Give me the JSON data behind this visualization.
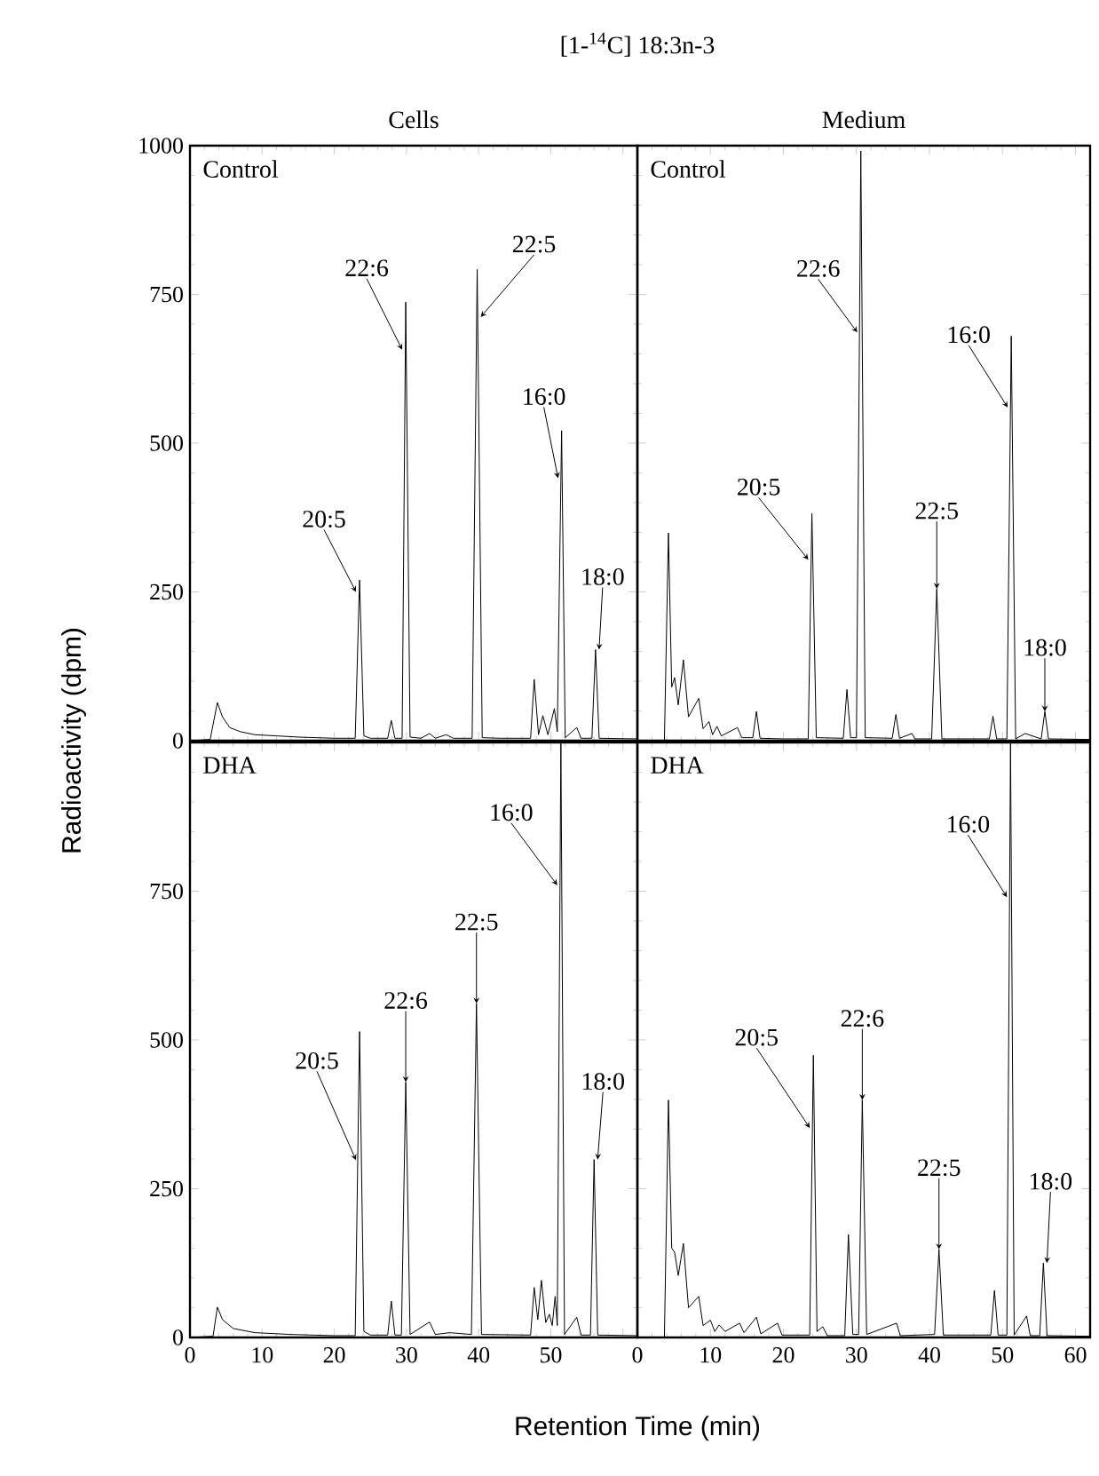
{
  "chart_data": [
    {
      "type": "line",
      "title": "[1-$^{14}$C] 18:3n-3",
      "subtitle": "Cells",
      "ylabel": "Radioactivity (dpm)",
      "annotations": [
        "Control",
        {
          "text": "20:5",
          "x": 23.5,
          "y": 250
        },
        {
          "text": "22:6",
          "x": 29.9,
          "y": 657
        },
        {
          "text": "22:5",
          "x": 39.8,
          "y": 712
        },
        {
          "text": "16:0",
          "x": 51.5,
          "y": 441
        },
        {
          "text": "18:0",
          "x": 56.2,
          "y": 153
        }
      ],
      "series": [
        {
          "color": "#000000",
          "x": [
            0,
            2.8,
            3.8,
            4.5,
            5.5,
            7,
            9,
            12,
            15,
            20,
            22.9,
            23.5,
            24.1,
            25,
            27.4,
            27.9,
            28.4,
            29.4,
            29.9,
            30.5,
            32,
            33.2,
            34,
            35.5,
            36.5,
            39.1,
            39.8,
            40.5,
            43,
            47.2,
            47.7,
            48.3,
            48.9,
            49.6,
            50.5,
            50.9,
            51.5,
            52.0,
            53.6,
            54.2,
            55.7,
            56.2,
            56.7,
            62
          ],
          "values": [
            0,
            2,
            64,
            40,
            22,
            15,
            10,
            8,
            6,
            4,
            4,
            270,
            8,
            4,
            4,
            34,
            4,
            4,
            737,
            6,
            4,
            12,
            4,
            10,
            4,
            4,
            792,
            5,
            4,
            4,
            103,
            10,
            42,
            10,
            54,
            15,
            521,
            5,
            22,
            4,
            4,
            153,
            4,
            3
          ]
        }
      ],
      "xlim": [
        0,
        62
      ],
      "ylim": [
        0,
        1000
      ],
      "xticks": [
        0,
        10,
        20,
        30,
        40,
        50,
        60
      ],
      "yticks": [
        0,
        250,
        500,
        750,
        1000
      ],
      "tick_labels": "y"
    },
    {
      "type": "line",
      "title": "Medium",
      "annotations": [
        "Control",
        {
          "text": "20:5",
          "x": 23.9,
          "y": 304
        },
        {
          "text": "22:6",
          "x": 30.6,
          "y": 686
        },
        {
          "text": "22:5",
          "x": 41.0,
          "y": 255
        },
        {
          "text": "16:0",
          "x": 51.2,
          "y": 560
        },
        {
          "text": "18:0",
          "x": 55.8,
          "y": 49
        }
      ],
      "series": [
        {
          "color": "#000000",
          "x": [
            0,
            3.7,
            4.25,
            4.7,
            5.1,
            5.6,
            6.3,
            7,
            8.4,
            9.0,
            9.8,
            10.3,
            10.9,
            11.5,
            13.7,
            14.3,
            15.8,
            16.3,
            16.8,
            20,
            23.4,
            23.9,
            24.5,
            28.2,
            28.7,
            29.2,
            30.0,
            30.6,
            31.2,
            34.9,
            35.4,
            35.9,
            37.6,
            38,
            40.3,
            41.0,
            41.7,
            48.2,
            48.7,
            49.2,
            50.6,
            51.2,
            51.8,
            53.1,
            55.3,
            55.8,
            56.3,
            62
          ],
          "values": [
            0,
            0,
            349,
            90,
            106,
            60,
            136,
            40,
            71,
            20,
            32,
            10,
            24,
            8,
            22,
            5,
            5,
            49,
            4,
            3,
            3,
            382,
            5,
            4,
            86,
            5,
            5,
            991,
            5,
            4,
            44,
            4,
            12,
            3,
            3,
            255,
            3,
            3,
            41,
            3,
            3,
            680,
            3,
            12,
            3,
            49,
            3,
            2
          ]
        }
      ],
      "xlim": [
        0,
        62
      ],
      "ylim": [
        0,
        1000
      ],
      "xticks": [
        0,
        10,
        20,
        30,
        40,
        50,
        60
      ],
      "yticks": [
        0,
        250,
        500,
        750,
        1000
      ],
      "tick_labels": false
    },
    {
      "type": "line",
      "xlabel": "Retention Time (min)",
      "annotations": [
        "DHA",
        {
          "text": "20:5",
          "x": 23.5,
          "y": 298
        },
        {
          "text": "22:6",
          "x": 29.9,
          "y": 429
        },
        {
          "text": "22:5",
          "x": 39.7,
          "y": 561
        },
        {
          "text": "16:0",
          "x": 51.4,
          "y": 760
        },
        {
          "text": "18:0",
          "x": 56.0,
          "y": 299
        }
      ],
      "series": [
        {
          "color": "#000000",
          "x": [
            0,
            3.2,
            3.8,
            4.5,
            6,
            9,
            14,
            20,
            22.9,
            23.5,
            24.1,
            25,
            27.4,
            27.9,
            28.4,
            29.3,
            29.9,
            30.5,
            33.2,
            34,
            36,
            39,
            39.7,
            40.4,
            47.2,
            47.7,
            48.2,
            48.7,
            49.3,
            49.8,
            50.2,
            50.6,
            50.9,
            51.4,
            51.9,
            53.6,
            54.2,
            55.5,
            56.0,
            56.5,
            62
          ],
          "values": [
            0,
            2,
            51,
            30,
            15,
            8,
            5,
            3,
            3,
            514,
            10,
            4,
            4,
            61,
            4,
            4,
            429,
            5,
            26,
            5,
            8,
            5,
            561,
            5,
            4,
            84,
            30,
            96,
            25,
            39,
            20,
            69,
            20,
            1000,
            5,
            34,
            4,
            4,
            299,
            4,
            3
          ]
        }
      ],
      "xlim": [
        0,
        62
      ],
      "ylim": [
        0,
        1000
      ],
      "xticks": [
        0,
        10,
        20,
        30,
        40,
        50,
        {
          "value": 60,
          "label": null
        }
      ],
      "yticks": [
        0,
        250,
        500,
        750,
        {
          "value": 1000,
          "label": null
        }
      ]
    },
    {
      "type": "line",
      "annotations": [
        "DHA",
        {
          "text": "20:5",
          "x": 24.1,
          "y": 352
        },
        {
          "text": "22:6",
          "x": 30.8,
          "y": 399
        },
        {
          "text": "22:5",
          "x": 41.3,
          "y": 148
        },
        {
          "text": "16:0",
          "x": 51.1,
          "y": 740
        },
        {
          "text": "18:0",
          "x": 55.6,
          "y": 125
        }
      ],
      "series": [
        {
          "color": "#000000",
          "x": [
            0,
            3.7,
            4.25,
            4.7,
            5.1,
            5.6,
            6.3,
            7,
            8.4,
            9,
            10,
            10.6,
            11.2,
            12,
            14,
            14.6,
            16.3,
            16.9,
            19.2,
            19.8,
            23.6,
            24.1,
            24.6,
            25.4,
            26,
            28.4,
            28.9,
            29.5,
            30.3,
            30.8,
            31.4,
            35.5,
            36,
            40.7,
            41.3,
            41.9,
            48.4,
            48.9,
            49.4,
            50.6,
            51.1,
            51.6,
            53.3,
            53.8,
            55.1,
            55.6,
            56.1,
            62
          ],
          "values": [
            0,
            0,
            399,
            150,
            143,
            104,
            158,
            50,
            69,
            20,
            29,
            10,
            21,
            10,
            24,
            8,
            34,
            6,
            24,
            4,
            4,
            474,
            10,
            18,
            3,
            3,
            173,
            5,
            5,
            399,
            5,
            24,
            3,
            5,
            148,
            4,
            4,
            79,
            4,
            4,
            1000,
            4,
            36,
            3,
            3,
            125,
            3,
            2
          ]
        }
      ],
      "xlim": [
        0,
        62
      ],
      "ylim": [
        0,
        1000
      ],
      "xticks": [
        0,
        10,
        20,
        30,
        40,
        50,
        60
      ],
      "yticks": [
        0,
        250,
        500,
        750,
        1000
      ],
      "tick_labels": "x"
    }
  ]
}
